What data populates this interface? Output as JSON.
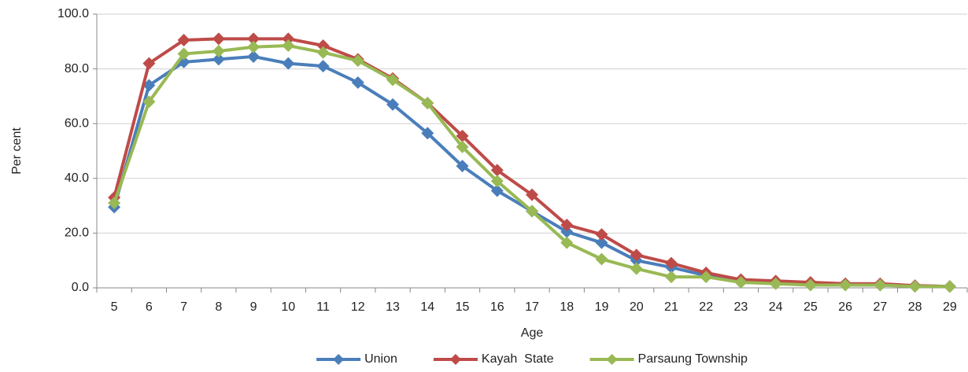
{
  "chart_data": {
    "type": "line",
    "xlabel": "Age",
    "ylabel": "Per cent",
    "categories": [
      "5",
      "6",
      "7",
      "8",
      "9",
      "10",
      "11",
      "12",
      "13",
      "14",
      "15",
      "16",
      "17",
      "18",
      "19",
      "20",
      "21",
      "22",
      "23",
      "24",
      "25",
      "26",
      "27",
      "28",
      "29"
    ],
    "series": [
      {
        "name": "Union",
        "color": "#4a7ebb",
        "values": [
          29.5,
          74,
          82.5,
          83.5,
          84.5,
          82,
          81,
          75,
          67,
          56.5,
          44.5,
          35.5,
          28,
          20.5,
          16.5,
          10,
          7.5,
          4.5,
          2.5,
          2,
          1.5,
          1.5,
          1,
          0.8,
          0.5
        ]
      },
      {
        "name": "Kayah  State",
        "color": "#be4b48",
        "values": [
          33,
          82,
          90.5,
          91,
          91,
          91,
          88.5,
          83.5,
          76.5,
          67.5,
          55.5,
          43,
          34,
          23,
          19.5,
          12,
          9,
          5.5,
          3,
          2.5,
          2,
          1.5,
          1.5,
          0.8,
          0.5
        ]
      },
      {
        "name": "Parsaung Township",
        "color": "#98b954",
        "values": [
          31,
          68,
          85.5,
          86.5,
          88,
          88.5,
          86,
          83,
          76,
          67.5,
          51.5,
          39,
          28,
          16.5,
          10.5,
          7,
          4,
          4,
          2,
          1.5,
          1,
          1,
          1,
          0.5,
          0.5
        ]
      }
    ],
    "ylim": [
      0,
      100
    ],
    "yticks": [
      {
        "value": 0,
        "label": "0.0"
      },
      {
        "value": 20,
        "label": "20.0"
      },
      {
        "value": 40,
        "label": "40.0"
      },
      {
        "value": 60,
        "label": "60.0"
      },
      {
        "value": 80,
        "label": "80.0"
      },
      {
        "value": 100,
        "label": "100.0"
      }
    ],
    "grid": true,
    "legend": "bottom"
  }
}
